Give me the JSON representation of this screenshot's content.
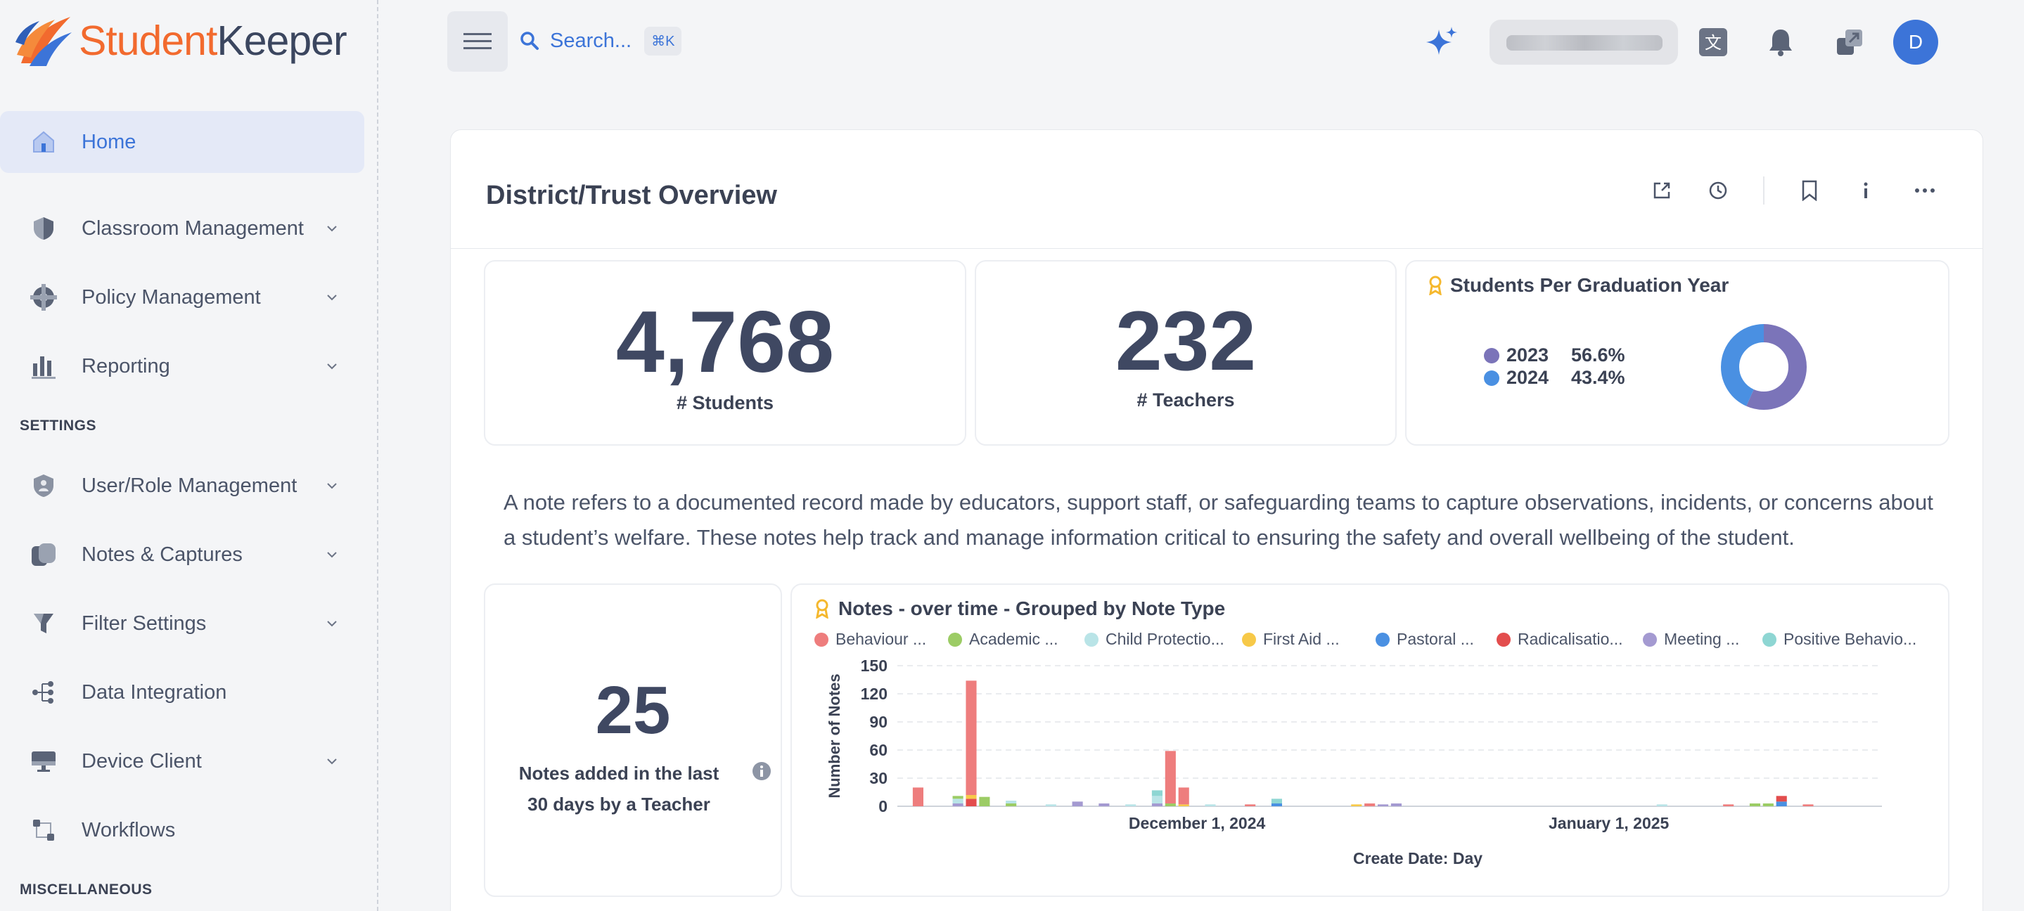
{
  "brand": {
    "name_part1": "Student",
    "name_part2": "Keeper"
  },
  "sidebar": {
    "items": [
      {
        "label": "Home",
        "icon": "home-icon",
        "active": true,
        "chevron": false
      },
      {
        "label": "Classroom Management",
        "icon": "shield-icon",
        "chevron": true
      },
      {
        "label": "Policy Management",
        "icon": "policy-icon",
        "chevron": true
      },
      {
        "label": "Reporting",
        "icon": "bar-chart-icon",
        "chevron": true
      }
    ],
    "settings_header": "SETTINGS",
    "settings_items": [
      {
        "label": "User/Role Management",
        "icon": "user-shield-icon",
        "chevron": true
      },
      {
        "label": "Notes & Captures",
        "icon": "notes-icon",
        "chevron": true
      },
      {
        "label": "Filter Settings",
        "icon": "filter-icon",
        "chevron": true
      },
      {
        "label": "Data Integration",
        "icon": "integration-icon",
        "chevron": false
      },
      {
        "label": "Device Client",
        "icon": "device-icon",
        "chevron": true
      },
      {
        "label": "Workflows",
        "icon": "workflow-icon",
        "chevron": false
      }
    ],
    "misc_header": "MISCELLANEOUS"
  },
  "topbar": {
    "search_label": "Search...",
    "shortcut": "⌘K",
    "avatar_initial": "D"
  },
  "dashboard": {
    "title": "District/Trust Overview",
    "students": {
      "value": "4,768",
      "label": "# Students"
    },
    "teachers": {
      "value": "232",
      "label": "# Teachers"
    },
    "grad_year": {
      "title": "Students Per Graduation Year",
      "rows": [
        {
          "year": "2023",
          "pct": "56.6%",
          "color": "#7b74b9"
        },
        {
          "year": "2024",
          "pct": "43.4%",
          "color": "#4a90e2"
        }
      ]
    },
    "note_description": "A note refers to a documented record made by educators, support staff, or safeguarding teams to capture observations, incidents, or concerns about a student’s welfare. These notes help track and manage information critical to ensuring the safety and overall wellbeing of the student.",
    "notes_recent": {
      "value": "25",
      "label_line1": "Notes added in the last",
      "label_line2": "30 days by a Teacher"
    }
  },
  "chart_data": {
    "type": "bar",
    "title": "Notes - over time - Grouped by Note Type",
    "xlabel": "Create Date: Day",
    "ylabel": "Number of Notes",
    "ylim": [
      0,
      150
    ],
    "yticks": [
      "150",
      "120",
      "90",
      "60",
      "30",
      "0"
    ],
    "xticks": [
      {
        "label": "December 1, 2024",
        "day": 21
      },
      {
        "label": "January 1, 2025",
        "day": 52
      }
    ],
    "stacked": true,
    "legend_position": "top",
    "series": [
      {
        "name": "Behaviour ...",
        "color": "#ee7d7d"
      },
      {
        "name": "Academic ...",
        "color": "#9ccc65"
      },
      {
        "name": "Child Protectio...",
        "color": "#b9e4e7"
      },
      {
        "name": "First Aid ...",
        "color": "#f7c948"
      },
      {
        "name": "Pastoral ...",
        "color": "#4a90e2"
      },
      {
        "name": "Radicalisatio...",
        "color": "#e34d4d"
      },
      {
        "name": "Meeting ...",
        "color": "#a49ad1"
      },
      {
        "name": "Positive Behavio...",
        "color": "#8ed6d3"
      }
    ],
    "bars": [
      {
        "day": 0,
        "stack": [
          {
            "s": 0,
            "v": 20
          }
        ]
      },
      {
        "day": 3,
        "stack": [
          {
            "s": 6,
            "v": 3
          },
          {
            "s": 2,
            "v": 5
          },
          {
            "s": 1,
            "v": 3
          }
        ]
      },
      {
        "day": 4,
        "stack": [
          {
            "s": 5,
            "v": 8
          },
          {
            "s": 3,
            "v": 4
          },
          {
            "s": 0,
            "v": 122
          }
        ]
      },
      {
        "day": 5,
        "stack": [
          {
            "s": 1,
            "v": 10
          }
        ]
      },
      {
        "day": 7,
        "stack": [
          {
            "s": 1,
            "v": 3
          },
          {
            "s": 2,
            "v": 3
          }
        ]
      },
      {
        "day": 10,
        "stack": [
          {
            "s": 2,
            "v": 2
          }
        ]
      },
      {
        "day": 12,
        "stack": [
          {
            "s": 6,
            "v": 5
          }
        ]
      },
      {
        "day": 14,
        "stack": [
          {
            "s": 6,
            "v": 3
          }
        ]
      },
      {
        "day": 16,
        "stack": [
          {
            "s": 2,
            "v": 2
          }
        ]
      },
      {
        "day": 18,
        "stack": [
          {
            "s": 6,
            "v": 3
          },
          {
            "s": 2,
            "v": 8
          },
          {
            "s": 7,
            "v": 6
          }
        ]
      },
      {
        "day": 19,
        "stack": [
          {
            "s": 1,
            "v": 3
          },
          {
            "s": 0,
            "v": 56
          }
        ]
      },
      {
        "day": 20,
        "stack": [
          {
            "s": 3,
            "v": 2
          },
          {
            "s": 0,
            "v": 18
          }
        ]
      },
      {
        "day": 22,
        "stack": [
          {
            "s": 2,
            "v": 2
          }
        ]
      },
      {
        "day": 25,
        "stack": [
          {
            "s": 0,
            "v": 2
          }
        ]
      },
      {
        "day": 27,
        "stack": [
          {
            "s": 4,
            "v": 3
          },
          {
            "s": 7,
            "v": 5
          }
        ]
      },
      {
        "day": 33,
        "stack": [
          {
            "s": 3,
            "v": 2
          }
        ]
      },
      {
        "day": 34,
        "stack": [
          {
            "s": 0,
            "v": 3
          }
        ]
      },
      {
        "day": 35,
        "stack": [
          {
            "s": 6,
            "v": 2
          }
        ]
      },
      {
        "day": 36,
        "stack": [
          {
            "s": 6,
            "v": 3
          }
        ]
      },
      {
        "day": 56,
        "stack": [
          {
            "s": 2,
            "v": 2
          }
        ]
      },
      {
        "day": 61,
        "stack": [
          {
            "s": 0,
            "v": 2
          }
        ]
      },
      {
        "day": 63,
        "stack": [
          {
            "s": 1,
            "v": 3
          }
        ]
      },
      {
        "day": 64,
        "stack": [
          {
            "s": 1,
            "v": 3
          }
        ]
      },
      {
        "day": 65,
        "stack": [
          {
            "s": 4,
            "v": 5
          },
          {
            "s": 5,
            "v": 6
          }
        ]
      },
      {
        "day": 67,
        "stack": [
          {
            "s": 0,
            "v": 2
          }
        ]
      }
    ]
  }
}
